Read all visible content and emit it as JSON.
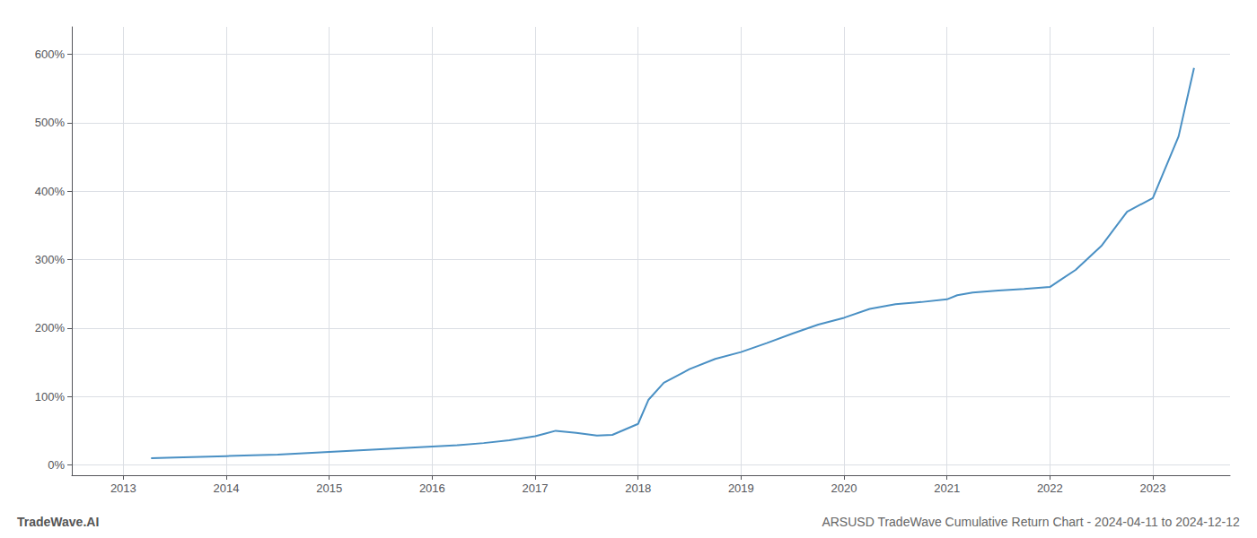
{
  "chart_data": {
    "type": "line",
    "title": "ARSUSD TradeWave Cumulative Return Chart - 2024-04-11 to 2024-12-12",
    "annotations": [
      "TradeWave.AI"
    ],
    "color": "#4a90c4",
    "grid": true,
    "x": [
      2013.27,
      2013.5,
      2013.75,
      2014.0,
      2014.25,
      2014.5,
      2014.75,
      2015.0,
      2015.25,
      2015.5,
      2015.75,
      2016.0,
      2016.25,
      2016.5,
      2016.75,
      2017.0,
      2017.1,
      2017.2,
      2017.4,
      2017.6,
      2017.75,
      2018.0,
      2018.1,
      2018.25,
      2018.5,
      2018.75,
      2019.0,
      2019.25,
      2019.5,
      2019.75,
      2020.0,
      2020.25,
      2020.5,
      2020.75,
      2021.0,
      2021.1,
      2021.25,
      2021.5,
      2021.75,
      2022.0,
      2022.1,
      2022.25,
      2022.5,
      2022.75,
      2023.0,
      2023.25,
      2023.4
    ],
    "values": [
      10,
      11,
      12,
      13,
      14,
      15,
      17,
      19,
      21,
      23,
      25,
      27,
      29,
      32,
      36,
      42,
      46,
      50,
      47,
      43,
      44,
      60,
      95,
      120,
      140,
      155,
      165,
      178,
      192,
      205,
      215,
      228,
      235,
      238,
      242,
      248,
      252,
      255,
      257,
      260,
      270,
      285,
      320,
      370,
      390,
      480,
      580
    ],
    "xlim": [
      2012.5,
      2023.75
    ],
    "xticks": [
      2013,
      2014,
      2015,
      2016,
      2017,
      2018,
      2019,
      2020,
      2021,
      2022,
      2023
    ],
    "ylim": [
      -15,
      640
    ],
    "yticks": [
      {
        "value": 0,
        "label": "0%"
      },
      {
        "value": 100,
        "label": "100%"
      },
      {
        "value": 200,
        "label": "200%"
      },
      {
        "value": 300,
        "label": "300%"
      },
      {
        "value": 400,
        "label": "400%"
      },
      {
        "value": 500,
        "label": "500%"
      },
      {
        "value": 600,
        "label": "600%"
      }
    ]
  }
}
